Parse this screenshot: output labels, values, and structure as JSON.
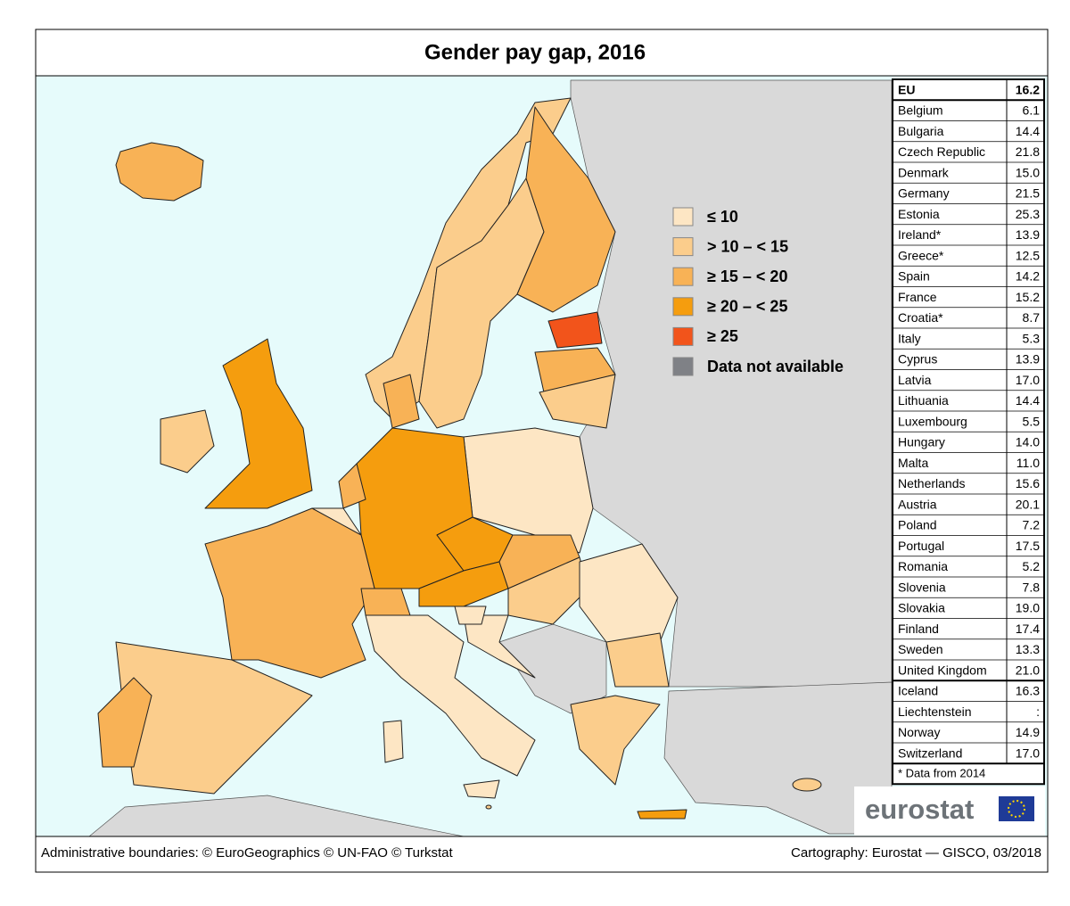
{
  "title": "Gender pay gap, 2016",
  "legend": [
    {
      "label": "≤ 10",
      "color": "#fde6c4"
    },
    {
      "label": "> 10 – < 15",
      "color": "#fbcd8c"
    },
    {
      "label": "≥ 15 – < 20",
      "color": "#f8b256"
    },
    {
      "label": "≥ 20 – < 25",
      "color": "#f59d0e"
    },
    {
      "label": "≥ 25",
      "color": "#f2541b"
    },
    {
      "label": "Data not available",
      "color": "#7f8186"
    }
  ],
  "table": {
    "rows": [
      [
        "EU",
        "16.2"
      ],
      [
        "Belgium",
        "6.1"
      ],
      [
        "Bulgaria",
        "14.4"
      ],
      [
        "Czech Republic",
        "21.8"
      ],
      [
        "Denmark",
        "15.0"
      ],
      [
        "Germany",
        "21.5"
      ],
      [
        "Estonia",
        "25.3"
      ],
      [
        "Ireland*",
        "13.9"
      ],
      [
        "Greece*",
        "12.5"
      ],
      [
        "Spain",
        "14.2"
      ],
      [
        "France",
        "15.2"
      ],
      [
        "Croatia*",
        "8.7"
      ],
      [
        "Italy",
        "5.3"
      ],
      [
        "Cyprus",
        "13.9"
      ],
      [
        "Latvia",
        "17.0"
      ],
      [
        "Lithuania",
        "14.4"
      ],
      [
        "Luxembourg",
        "5.5"
      ],
      [
        "Hungary",
        "14.0"
      ],
      [
        "Malta",
        "11.0"
      ],
      [
        "Netherlands",
        "15.6"
      ],
      [
        "Austria",
        "20.1"
      ],
      [
        "Poland",
        "7.2"
      ],
      [
        "Portugal",
        "17.5"
      ],
      [
        "Romania",
        "5.2"
      ],
      [
        "Slovenia",
        "7.8"
      ],
      [
        "Slovakia",
        "19.0"
      ],
      [
        "Finland",
        "17.4"
      ],
      [
        "Sweden",
        "13.3"
      ],
      [
        "United Kingdom",
        "21.0"
      ],
      [
        "Iceland",
        "16.3"
      ],
      [
        "Liechtenstein",
        ":"
      ],
      [
        "Norway",
        "14.9"
      ],
      [
        "Switzerland",
        "17.0"
      ]
    ],
    "note": "* Data from 2014"
  },
  "logo": "eurostat",
  "footer": {
    "left": "Administrative boundaries: © EuroGeographics © UN-FAO © Turkstat",
    "right": "Cartography: Eurostat — GISCO, 03/2018"
  }
}
